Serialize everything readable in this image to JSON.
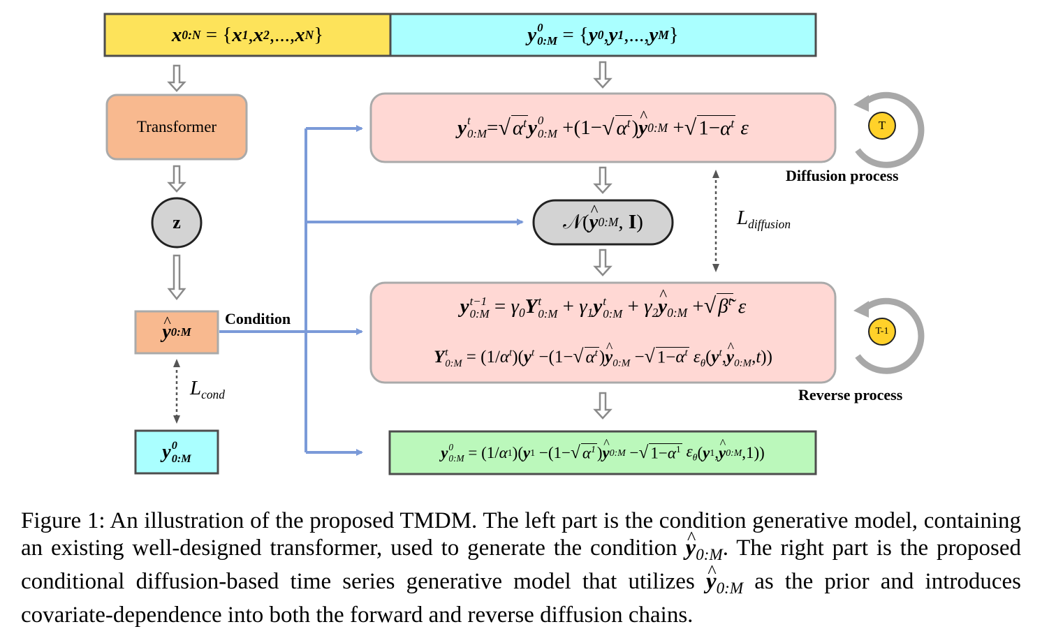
{
  "input_x": {
    "lhs": "x",
    "lhs_sub": "0:N",
    "rhs_items": [
      "x",
      "x",
      "...",
      "x"
    ],
    "rhs_subs": [
      "1",
      "2",
      "",
      "N"
    ]
  },
  "input_y": {
    "lhs": "y",
    "lhs_sup": "0",
    "lhs_sub": "0:M",
    "rhs_items": [
      "y",
      "y",
      "...",
      "y"
    ],
    "rhs_subs": [
      "0",
      "1",
      "",
      "M"
    ]
  },
  "transformer": {
    "label": "Transformer"
  },
  "latent": {
    "label": "z"
  },
  "condition_label": "Condition",
  "prior_box": {
    "var": "y",
    "sub": "0:M"
  },
  "target_box": {
    "var": "y",
    "sup": "0",
    "sub": "0:M"
  },
  "loss_cond": {
    "L": "L",
    "sub": "cond"
  },
  "loss_diffusion": {
    "L": "L",
    "sub": "diffusion"
  },
  "diffusion_label": "Diffusion process",
  "reverse_label": "Reverse process",
  "badge_T": "T",
  "badge_T1": "T-1",
  "gaussian": {
    "N": "𝒩",
    "y": "y",
    "sub": "0:M",
    "I": "I"
  },
  "colors": {
    "yellow": "#fde35a",
    "cyan": "#aaffff",
    "orange": "#f8b98f",
    "pink": "#ffd8d4",
    "green": "#bbf8bb",
    "gray_node": "#d3d3d3",
    "arrow_blue": "#7b9ad8",
    "badge_yellow": "#ffd12a",
    "box_border": "#4d4d4d"
  },
  "caption": "Figure 1: An illustration of the proposed TMDM. The left part is the condition generative model, containing an existing well-designed transformer, used to generate the condition ŷ0:M. The right part is the proposed conditional diffusion-based time series generative model that utilizes ŷ0:M as the prior and introduces covariate-dependence into both the forward and reverse diffusion chains.",
  "caption_parts": {
    "p1": "Figure 1: An illustration of the proposed TMDM. The left part is the condition generative model, containing an existing well-designed transformer, used to generate the condition ",
    "p2": ". The right part is the proposed conditional diffusion-based time series generative model that utilizes ",
    "p3": " as the prior and introduces covariate-dependence into both the forward and reverse diffusion chains.",
    "sym_var": "y",
    "sym_sub": "0:M"
  }
}
